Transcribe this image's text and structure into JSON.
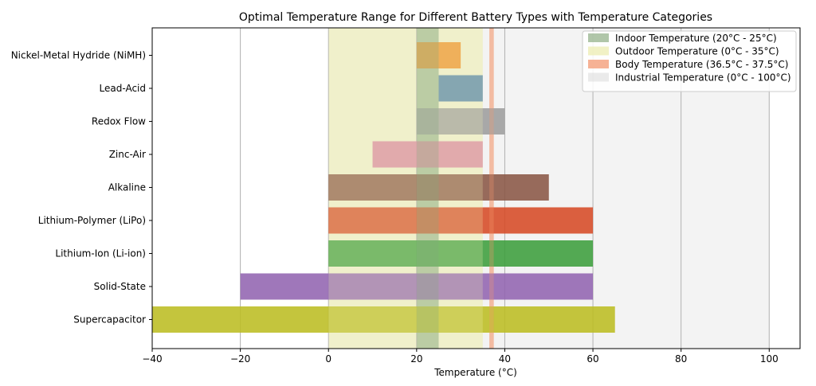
{
  "chart_data": {
    "type": "bar",
    "orientation": "horizontal",
    "title": "Optimal Temperature Range for Different Battery Types with Temperature Categories",
    "xlabel": "Temperature (°C)",
    "ylabel": "",
    "xlim": [
      -40,
      107
    ],
    "xticks": [
      -40,
      -20,
      0,
      20,
      40,
      60,
      80,
      100
    ],
    "xtick_labels": [
      "−40",
      "−20",
      "0",
      "20",
      "40",
      "60",
      "80",
      "100"
    ],
    "grid": "vertical",
    "legend_position": "top-right",
    "bars": [
      {
        "label": "Nickel-Metal Hydride (NiMH)",
        "min": 20,
        "max": 30,
        "color": "#ee8e25"
      },
      {
        "label": "Lead-Acid",
        "min": 25,
        "max": 35,
        "color": "#4d7fa8"
      },
      {
        "label": "Redox Flow",
        "min": 20,
        "max": 40,
        "color": "#9d9d9d"
      },
      {
        "label": "Zinc-Air",
        "min": 10,
        "max": 35,
        "color": "#d985a0"
      },
      {
        "label": "Alkaline",
        "min": 0,
        "max": 50,
        "color": "#8a5645"
      },
      {
        "label": "Lithium-Polymer (LiPo)",
        "min": 0,
        "max": 60,
        "color": "#d64a26"
      },
      {
        "label": "Lithium-Ion (Li-ion)",
        "min": 0,
        "max": 60,
        "color": "#3c9e3c"
      },
      {
        "label": "Solid-State",
        "min": -20,
        "max": 60,
        "color": "#9264b0"
      },
      {
        "label": "Supercapacitor",
        "min": -40,
        "max": 65,
        "color": "#bcbd22"
      }
    ],
    "bands": [
      {
        "label": "Indoor Temperature (20°C - 25°C)",
        "min": 20,
        "max": 25,
        "color": "#8fae85",
        "opacity": 0.45
      },
      {
        "label": "Outdoor Temperature (0°C - 35°C)",
        "min": 0,
        "max": 35,
        "color": "#eeeebb",
        "opacity": 0.6
      },
      {
        "label": "Body Temperature (36.5°C - 37.5°C)",
        "min": 36.5,
        "max": 37.5,
        "color": "#f4a582",
        "opacity": 0.6
      },
      {
        "label": "Industrial Temperature (0°C - 100°C)",
        "min": 0,
        "max": 100,
        "color": "#dcdcdc",
        "opacity": 0.35
      }
    ]
  }
}
